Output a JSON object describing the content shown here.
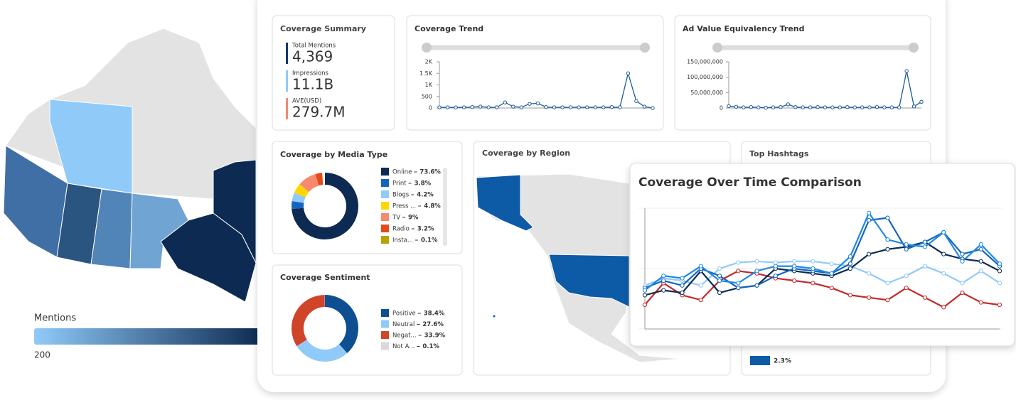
{
  "map_legend": {
    "title": "Mentions",
    "min_label": "200"
  },
  "summary": {
    "title": "Coverage Summary",
    "items": [
      {
        "label": "Total Mentions",
        "value": "4,369",
        "color": "#0d3b6e"
      },
      {
        "label": "Impressions",
        "value": "11.1B",
        "color": "#90caf9"
      },
      {
        "label": "AVE(USD)",
        "value": "279.7M",
        "color": "#f28b74"
      }
    ]
  },
  "region": {
    "title": "Coverage by Region"
  },
  "hashtags": {
    "title": "Top Hashtags",
    "legend_value": "2.3%",
    "color": "#0d5aa7"
  },
  "chart_data": [
    {
      "type": "line",
      "title": "Coverage Trend",
      "color": "#1a5a9a",
      "values": [
        30,
        30,
        25,
        30,
        40,
        60,
        30,
        30,
        240,
        60,
        30,
        180,
        200,
        40,
        30,
        30,
        30,
        30,
        30,
        30,
        30,
        40,
        30,
        1500,
        300,
        60,
        0
      ],
      "ylim": [
        0,
        2000
      ],
      "yticks": [
        0,
        500,
        {
          "value": 1000,
          "label": "1K"
        },
        {
          "value": 1500,
          "label": "1.5K"
        },
        {
          "value": 2000,
          "label": "2K"
        }
      ]
    },
    {
      "type": "line",
      "title": "Ad Value Equivalency Trend",
      "color": "#1a5a9a",
      "values": [
        6000000,
        4000000,
        2000000,
        3000000,
        2000000,
        1000000,
        2000000,
        3000000,
        12000000,
        3000000,
        2000000,
        2000000,
        3000000,
        2000000,
        2000000,
        2000000,
        3000000,
        2000000,
        2000000,
        2000000,
        3000000,
        2000000,
        2000000,
        2000000,
        120000000,
        5000000,
        20000000
      ],
      "ylim": [
        0,
        150000000
      ],
      "yticks": [
        0,
        {
          "value": 50000000,
          "label": "50,000,000"
        },
        {
          "value": 100000000,
          "label": "100,000,000"
        },
        {
          "value": 150000000,
          "label": "150,000,000"
        }
      ]
    },
    {
      "type": "pie",
      "title": "Coverage by Media Type",
      "categories": [
        "Online",
        "Print",
        "Blogs",
        "Press ...",
        "TV",
        "Radio",
        "Insta..."
      ],
      "values": [
        73.6,
        3.8,
        4.2,
        4.8,
        9,
        3.2,
        0.1
      ],
      "value_labels": [
        "73.6%",
        "3.8%",
        "4.2%",
        "4.8%",
        "9%",
        "3.2%",
        "0.1%"
      ],
      "colors": [
        "#0d2b52",
        "#1565c0",
        "#90caf9",
        "#ffd600",
        "#f78a6e",
        "#e64a19",
        "#b5a300"
      ]
    },
    {
      "type": "pie",
      "title": "Coverage Sentiment",
      "categories": [
        "Positive",
        "Neutral",
        "Negat...",
        "Not A..."
      ],
      "values": [
        38.4,
        27.6,
        33.9,
        0.1
      ],
      "value_labels": [
        "38.4%",
        "27.6%",
        "33.9%",
        "0.1%"
      ],
      "colors": [
        "#0d4f91",
        "#90caf9",
        "#d0442a",
        "#d9d9d9"
      ]
    },
    {
      "type": "line",
      "title": "Coverage Over Time Comparison",
      "ylim": [
        0,
        100
      ],
      "series": [
        {
          "color": "#90caf9",
          "values": [
            36,
            42,
            40,
            36,
            50,
            55,
            56,
            55,
            56,
            56,
            54,
            52,
            46,
            38,
            44,
            52,
            46,
            38,
            48,
            38
          ]
        },
        {
          "color": "#c62828",
          "values": [
            20,
            38,
            28,
            24,
            40,
            48,
            46,
            42,
            40,
            38,
            34,
            28,
            26,
            24,
            34,
            26,
            18,
            30,
            22,
            20
          ]
        },
        {
          "color": "#0d2b52",
          "values": [
            28,
            32,
            30,
            48,
            30,
            34,
            36,
            50,
            48,
            46,
            44,
            50,
            62,
            66,
            68,
            72,
            62,
            58,
            56,
            48
          ]
        },
        {
          "color": "#1565c0",
          "values": [
            34,
            40,
            36,
            50,
            44,
            34,
            36,
            44,
            50,
            48,
            46,
            54,
            90,
            92,
            66,
            72,
            80,
            62,
            66,
            52
          ]
        },
        {
          "color": "#1e88e5",
          "values": [
            32,
            44,
            42,
            52,
            40,
            38,
            48,
            52,
            52,
            50,
            46,
            60,
            96,
            74,
            70,
            68,
            80,
            56,
            70,
            54
          ]
        }
      ]
    }
  ]
}
